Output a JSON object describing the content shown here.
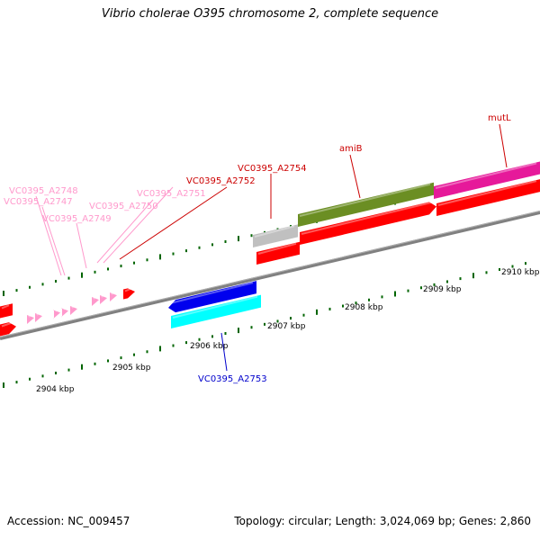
{
  "title": "Vibrio cholerae O395 chromosome 2, complete sequence",
  "footer": {
    "accession": "Accession: NC_009457",
    "topology": "Topology: circular; Length: 3,024,069 bp; Genes: 2,860"
  },
  "colors": {
    "forward_cds": "#ff0000",
    "reverse_cds": "#ff0000",
    "light_pink": "#ff99cc",
    "magenta": "#e6199a",
    "olive": "#6b8e23",
    "grey": "#c0c0c0",
    "blue": "#0000ee",
    "cyan": "#00ffff",
    "tick": "#006400",
    "backbone": "#808080"
  },
  "kbp_labels": [
    "2904 kbp",
    "2905 kbp",
    "2906 kbp",
    "2907 kbp",
    "2908 kbp",
    "2909 kbp",
    "2910 kbp"
  ],
  "gene_labels": [
    {
      "text": "VC0395_A2748",
      "color": "#ff99cc"
    },
    {
      "text": "VC0395_A2747",
      "color": "#ff99cc"
    },
    {
      "text": "VC0395_A2749",
      "color": "#ff99cc"
    },
    {
      "text": "VC0395_A2750",
      "color": "#ff99cc"
    },
    {
      "text": "VC0395_A2751",
      "color": "#ff99cc"
    },
    {
      "text": "VC0395_A2752",
      "color": "#cc0000"
    },
    {
      "text": "VC0395_A2754",
      "color": "#cc0000"
    },
    {
      "text": "amiB",
      "color": "#cc0000"
    },
    {
      "text": "mutL",
      "color": "#cc0000"
    },
    {
      "text": "VC0395_A2753",
      "color": "#0000cc"
    }
  ]
}
